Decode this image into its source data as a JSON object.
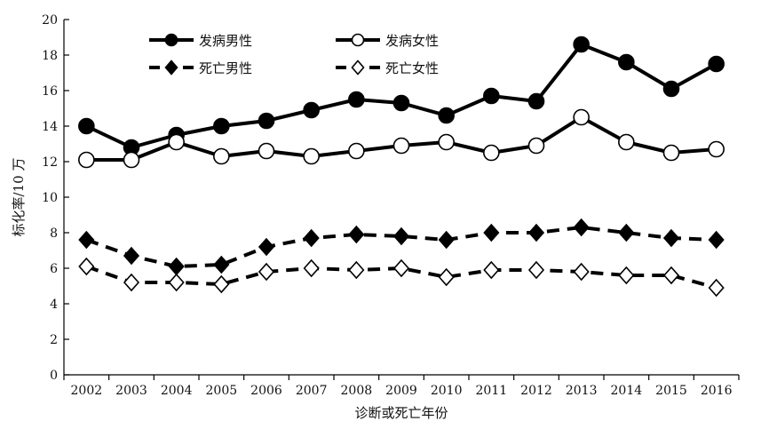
{
  "chart_data": {
    "type": "line",
    "xlabel": "诊断或死亡年份",
    "ylabel": "标化率/10 万",
    "ylim": [
      0,
      20
    ],
    "yticks": [
      0,
      2,
      4,
      6,
      8,
      10,
      12,
      14,
      16,
      18,
      20
    ],
    "grid": false,
    "legend_position": "top-left",
    "categories": [
      "2002",
      "2003",
      "2004",
      "2005",
      "2006",
      "2007",
      "2008",
      "2009",
      "2010",
      "2011",
      "2012",
      "2013",
      "2014",
      "2015",
      "2016"
    ],
    "series": [
      {
        "name": "发病男性",
        "line": "solid",
        "marker": "circle",
        "filled": true,
        "values": [
          14.0,
          12.8,
          13.5,
          14.0,
          14.3,
          14.9,
          15.5,
          15.3,
          14.6,
          15.7,
          15.4,
          18.6,
          17.6,
          16.1,
          17.5
        ]
      },
      {
        "name": "发病女性",
        "line": "solid",
        "marker": "circle",
        "filled": false,
        "values": [
          12.1,
          12.1,
          13.1,
          12.3,
          12.6,
          12.3,
          12.6,
          12.9,
          13.1,
          12.5,
          12.9,
          14.5,
          13.1,
          12.5,
          12.7
        ]
      },
      {
        "name": "死亡男性",
        "line": "dashed",
        "marker": "diamond",
        "filled": true,
        "values": [
          7.6,
          6.7,
          6.1,
          6.2,
          7.2,
          7.7,
          7.9,
          7.8,
          7.6,
          8.0,
          8.0,
          8.3,
          8.0,
          7.7,
          7.6
        ]
      },
      {
        "name": "死亡女性",
        "line": "dashed",
        "marker": "diamond",
        "filled": false,
        "values": [
          6.1,
          5.2,
          5.2,
          5.1,
          5.8,
          6.0,
          5.9,
          6.0,
          5.5,
          5.9,
          5.9,
          5.8,
          5.6,
          5.6,
          4.9
        ]
      }
    ]
  }
}
